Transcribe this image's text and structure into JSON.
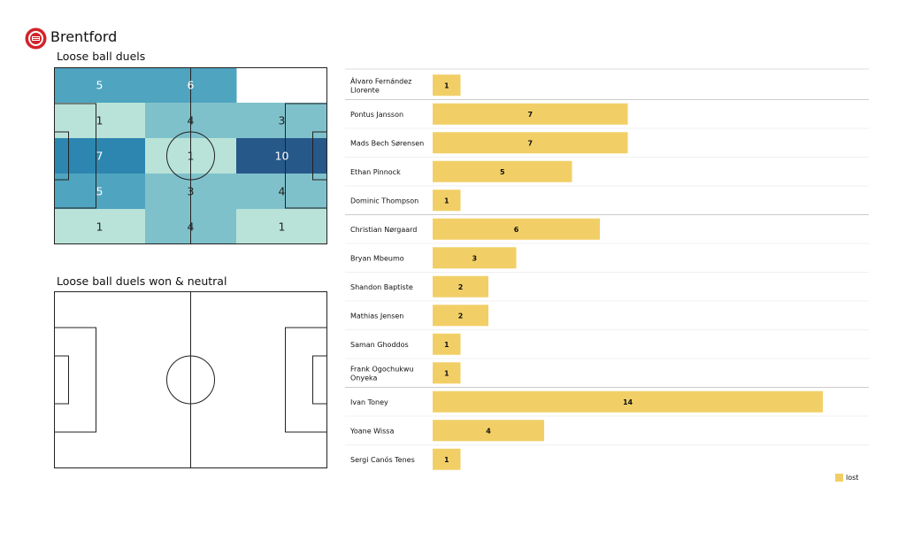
{
  "team": {
    "name": "Brentford",
    "logo_icon": "brentford-crest-icon"
  },
  "pitch_top": {
    "title": "Loose ball duels",
    "grid": [
      [
        5,
        6,
        null
      ],
      [
        1,
        4,
        3
      ],
      [
        7,
        1,
        10
      ],
      [
        5,
        3,
        4
      ],
      [
        1,
        4,
        1
      ]
    ],
    "color_scale": [
      "#b9e3d8",
      "#7fc1cb",
      "#4fa4bf",
      "#2d86b0",
      "#27588a"
    ],
    "color_max": 10
  },
  "pitch_bottom": {
    "title": "Loose ball duels won & neutral"
  },
  "chart_data": {
    "type": "bar",
    "orientation": "horizontal",
    "categories": [
      "Álvaro Fernández Llorente",
      "Pontus Jansson",
      "Mads Bech Sørensen",
      "Ethan Pinnock",
      "Dominic Thompson",
      "Christian Nørgaard",
      "Bryan Mbeumo",
      "Shandon Baptiste",
      "Mathias Jensen",
      "Saman Ghoddos",
      "Frank Ogochukwu Onyeka",
      "Ivan Toney",
      "Yoane Wissa",
      "Sergi Canós Tenes"
    ],
    "label_lines": [
      [
        "Álvaro Fernández",
        "Llorente"
      ],
      [
        "Pontus Jansson"
      ],
      [
        "Mads Bech Sørensen"
      ],
      [
        "Ethan Pinnock"
      ],
      [
        "Dominic Thompson"
      ],
      [
        "Christian Nørgaard"
      ],
      [
        "Bryan Mbeumo"
      ],
      [
        "Shandon Baptiste"
      ],
      [
        "Mathias Jensen"
      ],
      [
        "Saman Ghoddos"
      ],
      [
        "Frank Ogochukwu",
        "Onyeka"
      ],
      [
        "Ivan Toney"
      ],
      [
        "Yoane Wissa"
      ],
      [
        "Sergi Canós Tenes"
      ]
    ],
    "series": [
      {
        "name": "lost",
        "color": "#f2cf66",
        "values": [
          1,
          7,
          7,
          5,
          1,
          6,
          3,
          2,
          2,
          1,
          1,
          14,
          4,
          1
        ]
      }
    ],
    "group_separators_after": [
      0,
      4,
      10
    ],
    "xlim": [
      0,
      14.6
    ],
    "legend": {
      "position": "bottom-right",
      "label": "lost"
    }
  }
}
